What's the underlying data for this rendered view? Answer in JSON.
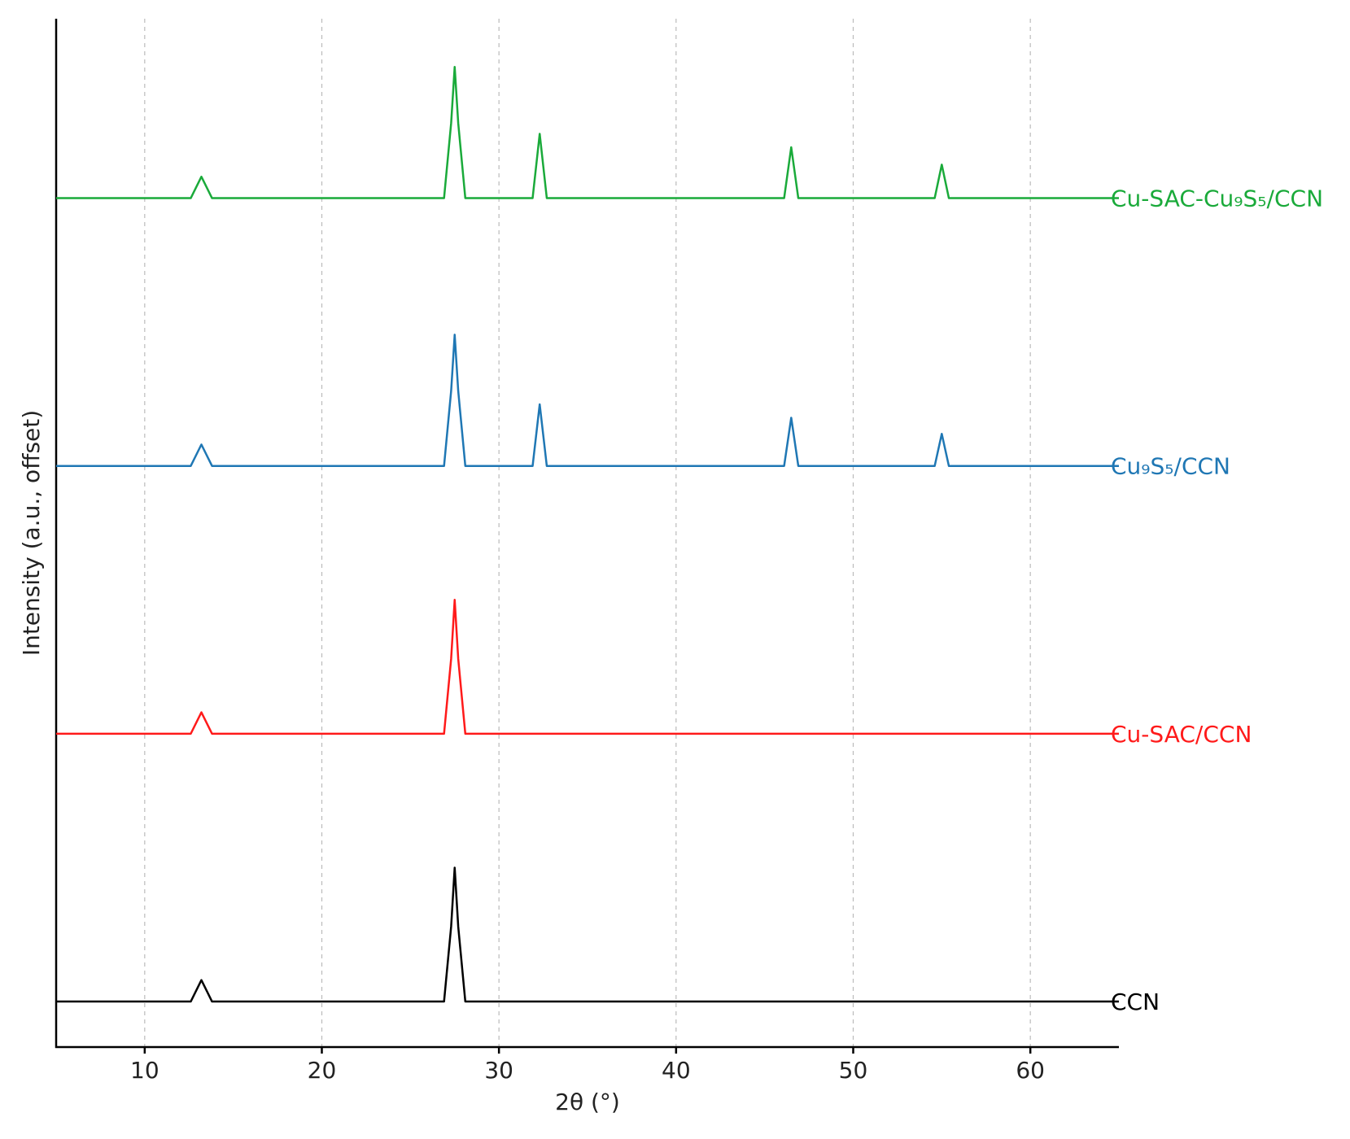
{
  "chart_data": {
    "type": "line",
    "xlabel": "2θ (°)",
    "ylabel": "Intensity (a.u., offset)",
    "x": [
      5,
      12.6,
      13.2,
      13.8,
      26.9,
      27.3,
      27.5,
      27.7,
      28.1,
      31.9,
      32.3,
      32.7,
      46.1,
      46.5,
      46.9,
      54.6,
      55,
      55.4,
      65
    ],
    "series": [
      {
        "name": "CCN",
        "color": "#000000",
        "values": [
          0.17,
          0.17,
          0.25,
          0.17,
          0.17,
          0.45,
          0.67,
          0.45,
          0.17,
          0.17,
          0.17,
          0.17,
          0.17,
          0.17,
          0.17,
          0.17,
          0.17,
          0.17,
          0.17
        ]
      },
      {
        "name": "Cu-SAC/CCN",
        "color": "#ff1a1a",
        "values": [
          1.17,
          1.17,
          1.25,
          1.17,
          1.17,
          1.45,
          1.67,
          1.45,
          1.17,
          1.17,
          1.17,
          1.17,
          1.17,
          1.17,
          1.17,
          1.17,
          1.17,
          1.17,
          1.17
        ]
      },
      {
        "name": "Cu₉S₅/CCN",
        "color": "#1f77b4",
        "values": [
          2.17,
          2.17,
          2.25,
          2.17,
          2.17,
          2.45,
          2.66,
          2.45,
          2.17,
          2.17,
          2.4,
          2.17,
          2.17,
          2.35,
          2.17,
          2.17,
          2.29,
          2.17,
          2.17
        ]
      },
      {
        "name": "Cu-SAC-Cu₉S₅/CCN",
        "color": "#1aaa3a",
        "values": [
          3.17,
          3.17,
          3.25,
          3.17,
          3.17,
          3.45,
          3.66,
          3.45,
          3.17,
          3.17,
          3.41,
          3.17,
          3.17,
          3.36,
          3.17,
          3.17,
          3.295,
          3.17,
          3.17
        ]
      }
    ],
    "xlim": [
      5,
      65
    ],
    "xticks": [
      10,
      20,
      30,
      40,
      50,
      60
    ],
    "ylim": [
      0,
      3.84
    ],
    "grid": true
  }
}
